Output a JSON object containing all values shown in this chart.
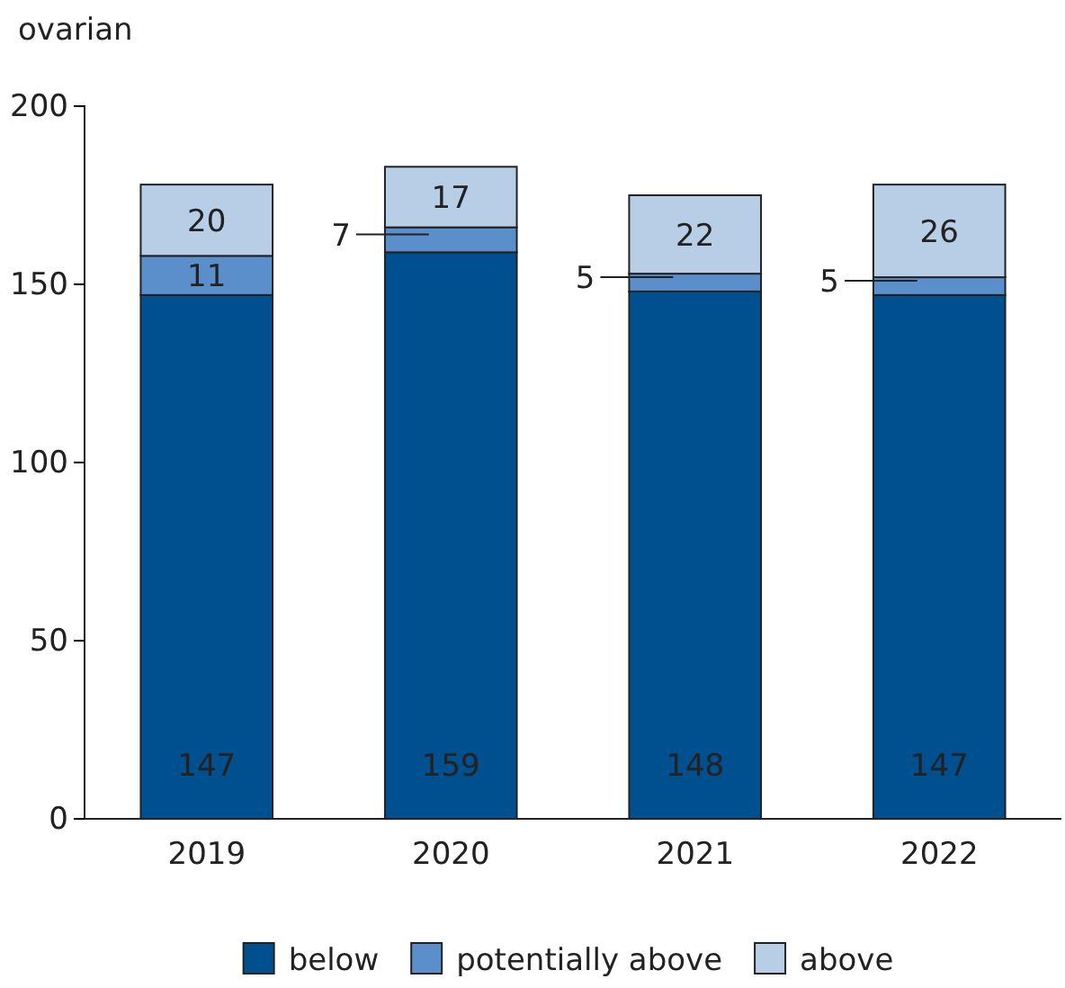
{
  "chart_data": {
    "type": "bar",
    "stacked": true,
    "ylabel": "ovarian",
    "categories": [
      "2019",
      "2020",
      "2021",
      "2022"
    ],
    "series": [
      {
        "name": "below",
        "color": "#00508f",
        "values": [
          147,
          159,
          148,
          147
        ]
      },
      {
        "name": "potentially above",
        "color": "#5b8fcb",
        "values": [
          11,
          7,
          5,
          5
        ]
      },
      {
        "name": "above",
        "color": "#b8cde6",
        "values": [
          20,
          17,
          22,
          26
        ]
      }
    ],
    "ylim": [
      0,
      200
    ],
    "yticks": [
      0,
      50,
      100,
      150,
      200
    ],
    "data_labels": true,
    "legend": "bottom",
    "grid": false
  }
}
